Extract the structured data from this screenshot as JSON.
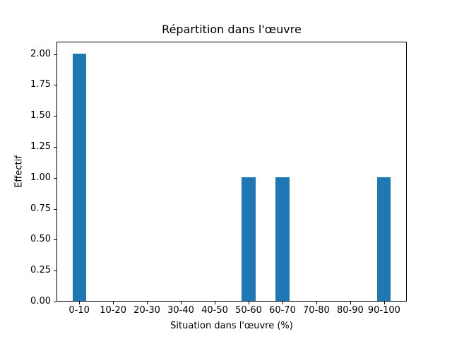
{
  "chart_data": {
    "type": "bar",
    "title": "Répartition dans l'œuvre",
    "xlabel": "Situation dans l'œuvre (%)",
    "ylabel": "Effectif",
    "categories": [
      "0-10",
      "10-20",
      "20-30",
      "30-40",
      "40-50",
      "50-60",
      "60-70",
      "70-80",
      "80-90",
      "90-100"
    ],
    "values": [
      2,
      0,
      0,
      0,
      0,
      1,
      1,
      0,
      0,
      1
    ],
    "yticks": [
      0.0,
      0.25,
      0.5,
      0.75,
      1.0,
      1.25,
      1.5,
      1.75,
      2.0
    ],
    "ytick_decimals": 2,
    "ylim": [
      0,
      2.1
    ],
    "xlim": [
      -0.67,
      9.67
    ],
    "bar_width_units": 0.4,
    "bar_color": "#1f77b4",
    "grid": false,
    "legend": null,
    "background_color": "#ffffff"
  }
}
